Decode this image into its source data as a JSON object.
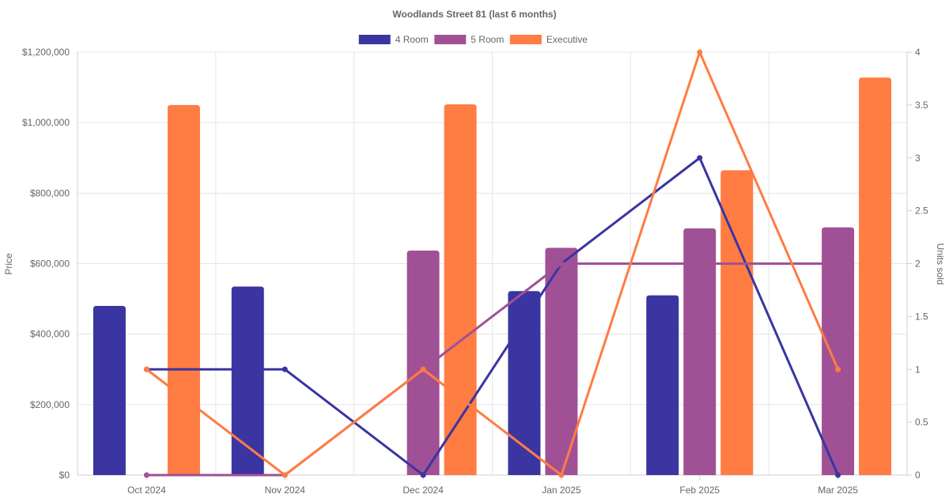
{
  "chart_data": {
    "type": "bar+line",
    "title": "Woodlands Street 81 (last 6 months)",
    "categories": [
      "Oct 2024",
      "Nov 2024",
      "Dec 2024",
      "Jan 2025",
      "Feb 2025",
      "Mar 2025"
    ],
    "left_axis": {
      "label": "Price",
      "min": 0,
      "max": 1200000,
      "ticks": [
        0,
        200000,
        400000,
        600000,
        800000,
        1000000,
        1200000
      ],
      "tick_labels": [
        "$0",
        "$200,000",
        "$400,000",
        "$600,000",
        "$800,000",
        "$1,000,000",
        "$1,200,000"
      ]
    },
    "right_axis": {
      "label": "Units sold",
      "min": 0,
      "max": 4,
      "ticks": [
        0,
        0.5,
        1,
        1.5,
        2,
        2.5,
        3,
        3.5,
        4
      ],
      "tick_labels": [
        "0",
        "0.5",
        "1",
        "1.5",
        "2",
        "2.5",
        "3",
        "3.5",
        "4"
      ]
    },
    "legend": {
      "position": "top-center",
      "entries": [
        "4 Room",
        "5 Room",
        "Executive"
      ]
    },
    "series": [
      {
        "name": "4 Room",
        "color": "#3a35a0",
        "price": [
          480000,
          535000,
          null,
          522000,
          510000,
          null
        ],
        "units": [
          1,
          1,
          0,
          2,
          3,
          0
        ]
      },
      {
        "name": "5 Room",
        "color": "#a05196",
        "price": [
          null,
          null,
          637000,
          645000,
          700000,
          703000
        ],
        "units": [
          0,
          0,
          1,
          2,
          2,
          2
        ]
      },
      {
        "name": "Executive",
        "color": "#ff7c43",
        "price": [
          1050000,
          null,
          1052000,
          null,
          865000,
          1128000
        ],
        "units": [
          1,
          0,
          1,
          0,
          4,
          1
        ]
      }
    ]
  }
}
